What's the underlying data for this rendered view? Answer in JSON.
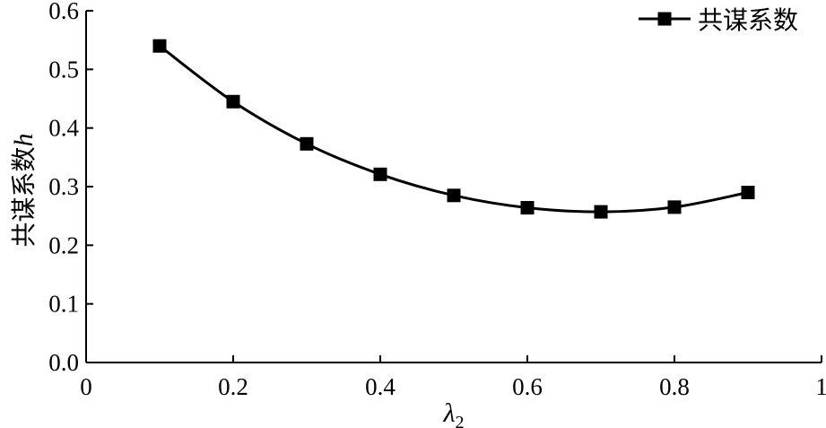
{
  "chart_data": {
    "type": "line",
    "xlabel": "λ2",
    "xlabel_main": "λ",
    "xlabel_sub": "2",
    "ylabel": "共谋系数h",
    "ylabel_main": "共谋系数",
    "ylabel_var": "h",
    "xlim": [
      0,
      1
    ],
    "ylim": [
      0,
      0.6
    ],
    "x_ticks": [
      0,
      0.2,
      0.4,
      0.6,
      0.8,
      1
    ],
    "x_tick_labels": [
      "0",
      "0.2",
      "0.4",
      "0.6",
      "0.8",
      "1"
    ],
    "y_ticks": [
      0,
      0.1,
      0.2,
      0.3,
      0.4,
      0.5,
      0.6
    ],
    "y_tick_labels": [
      "0.0",
      "0.1",
      "0.2",
      "0.3",
      "0.4",
      "0.5",
      "0.6"
    ],
    "legend_position": "top-right",
    "grid": false,
    "series": [
      {
        "name": "共谋系数",
        "color": "#000000",
        "marker": "square",
        "x": [
          0.1,
          0.2,
          0.3,
          0.4,
          0.5,
          0.6,
          0.7,
          0.8,
          0.9
        ],
        "y": [
          0.54,
          0.445,
          0.373,
          0.321,
          0.285,
          0.264,
          0.257,
          0.265,
          0.29
        ]
      }
    ]
  }
}
